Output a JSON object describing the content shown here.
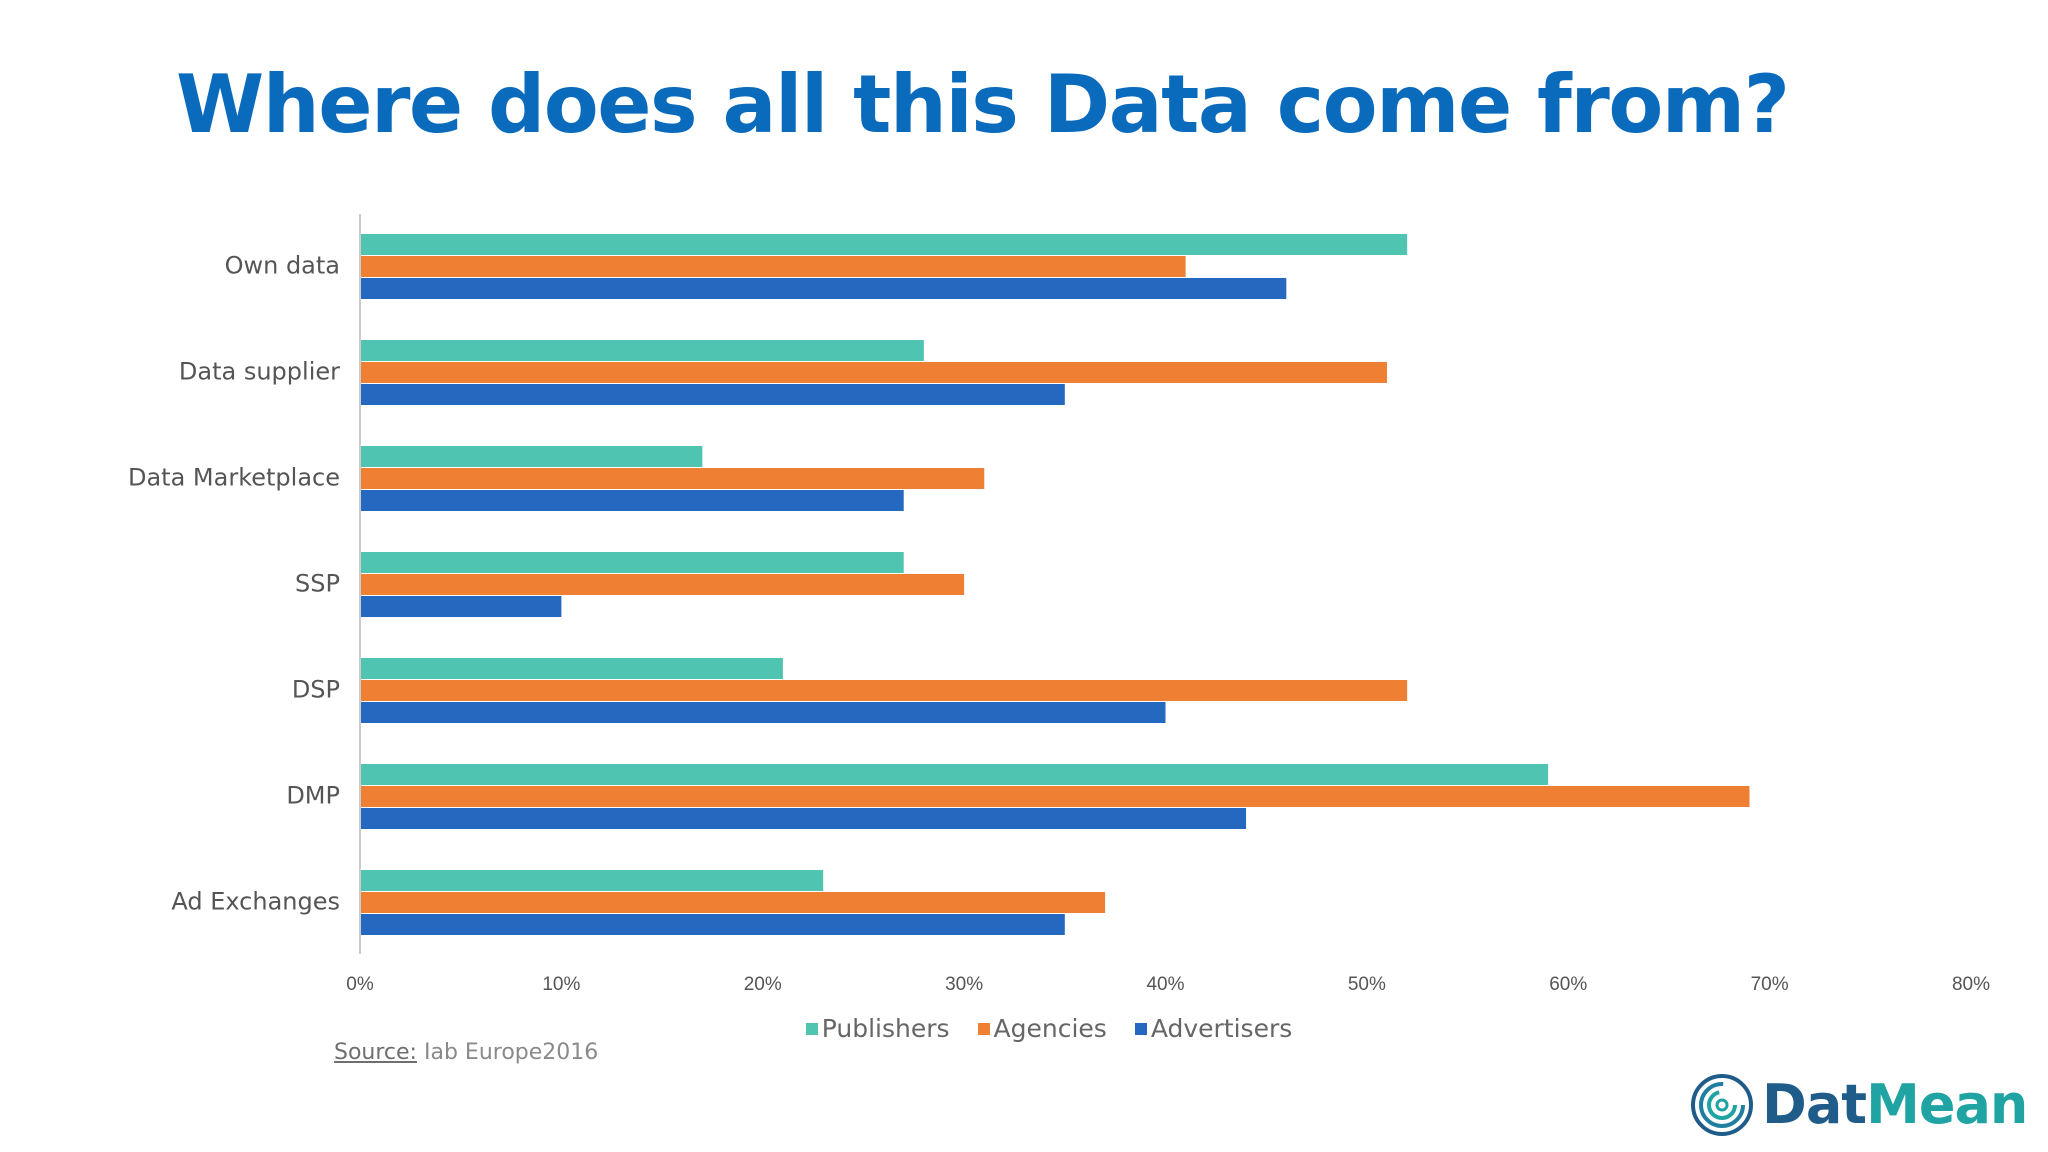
{
  "slide": {
    "title": "Where does all this Data come from?",
    "source_label": "Source:",
    "source_text": "Iab Europe2016"
  },
  "brand": {
    "name_part1": "Dat",
    "name_part2": "Mean",
    "logo_icon": "concentric-spiral-icon"
  },
  "colors": {
    "title": "#0a6bbd",
    "publishers": "#4fc4b0",
    "agencies": "#ef7f32",
    "advertisers": "#2469bf",
    "axis": "#cccccc"
  },
  "chart_data": {
    "type": "bar",
    "orientation": "horizontal",
    "categories": [
      "Own data",
      "Data supplier",
      "Data Marketplace",
      "SSP",
      "DSP",
      "DMP",
      "Ad Exchanges"
    ],
    "series": [
      {
        "name": "Publishers",
        "values": [
          52,
          28,
          17,
          27,
          21,
          59,
          23
        ]
      },
      {
        "name": "Agencies",
        "values": [
          41,
          51,
          31,
          30,
          52,
          69,
          37
        ]
      },
      {
        "name": "Advertisers",
        "values": [
          46,
          35,
          27,
          10,
          40,
          44,
          35
        ]
      }
    ],
    "xlim": [
      0,
      80
    ],
    "xticks": [
      "0%",
      "10%",
      "20%",
      "30%",
      "40%",
      "50%",
      "60%",
      "70%",
      "80%"
    ],
    "grid": false,
    "legend_position": "bottom"
  }
}
